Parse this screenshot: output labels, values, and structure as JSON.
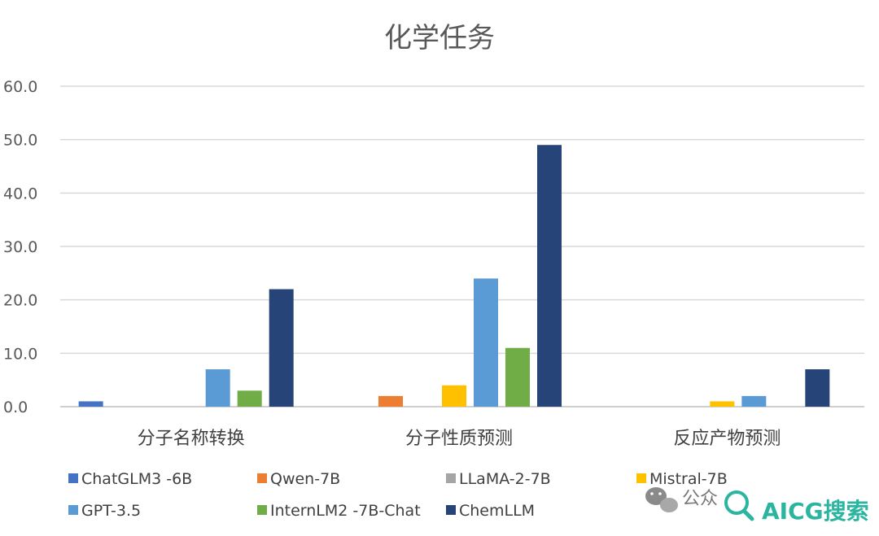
{
  "chart_data": {
    "type": "bar",
    "title": "化学任务",
    "categories": [
      "分子名称转换",
      "分子性质预测",
      "反应产物预测"
    ],
    "ylim": [
      0,
      60
    ],
    "yticks": [
      "0.0",
      "10.0",
      "20.0",
      "30.0",
      "40.0",
      "50.0",
      "60.0"
    ],
    "ytick_values": [
      0,
      10,
      20,
      30,
      40,
      50,
      60
    ],
    "grid": true,
    "legend_position": "bottom",
    "series": [
      {
        "name": "ChatGLM3 -6B",
        "color": "#4472c4",
        "values": [
          1,
          0,
          0
        ]
      },
      {
        "name": "Qwen-7B",
        "color": "#ed7d31",
        "values": [
          0,
          2,
          0
        ]
      },
      {
        "name": "LLaMA-2-7B",
        "color": "#a5a5a5",
        "values": [
          0,
          0,
          0
        ]
      },
      {
        "name": "Mistral-7B",
        "color": "#ffc000",
        "values": [
          0,
          4,
          1
        ]
      },
      {
        "name": "GPT-3.5",
        "color": "#5b9bd5",
        "values": [
          7,
          24,
          2
        ]
      },
      {
        "name": "InternLM2 -7B-Chat",
        "color": "#70ad47",
        "values": [
          3,
          11,
          0
        ]
      },
      {
        "name": "ChemLLM",
        "color": "#264478",
        "values": [
          22,
          49,
          7
        ]
      }
    ]
  },
  "watermark": {
    "text": "公众",
    "brand": "AICG搜索",
    "icon": "wechat-icon",
    "brand_icon": "search-icon"
  }
}
